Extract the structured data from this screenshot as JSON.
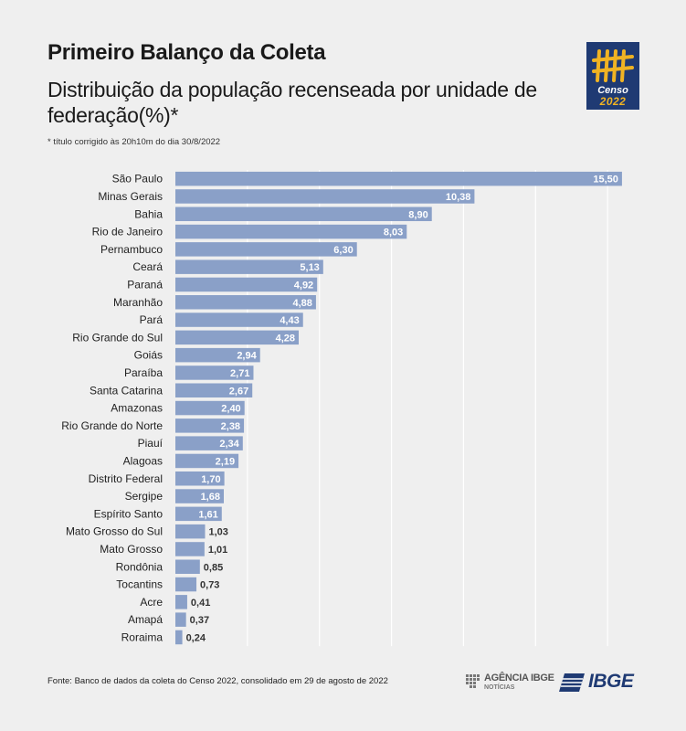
{
  "header": {
    "title": "Primeiro Balanço da Coleta",
    "subtitle": "Distribuição da população recenseada por unidade de federação(%)*",
    "note": "* título corrigido às 20h10m do dia 30/8/2022"
  },
  "logo": {
    "censo_word": "Censo",
    "censo_year": "2022"
  },
  "footer": {
    "source": "Fonte: Banco de dados da coleta do Censo 2022, consolidado em 29 de agosto de 2022",
    "agencia_name": "AGÊNCIA IBGE",
    "agencia_sub": "NOTÍCIAS",
    "ibge_word": "IBGE"
  },
  "colors": {
    "bar": "#8aa0c8",
    "logo_bg": "#1f3a73",
    "logo_accent": "#f0b323",
    "background": "#efefef"
  },
  "chart_data": {
    "type": "bar",
    "orientation": "horizontal",
    "categories": [
      "São Paulo",
      "Minas Gerais",
      "Bahia",
      "Rio de Janeiro",
      "Pernambuco",
      "Ceará",
      "Paraná",
      "Maranhão",
      "Pará",
      "Rio Grande do Sul",
      "Goiás",
      "Paraíba",
      "Santa Catarina",
      "Amazonas",
      "Rio Grande do Norte",
      "Piauí",
      "Alagoas",
      "Distrito Federal",
      "Sergipe",
      "Espírito Santo",
      "Mato Grosso do Sul",
      "Mato Grosso",
      "Rondônia",
      "Tocantins",
      "Acre",
      "Amapá",
      "Roraima"
    ],
    "values": [
      15.5,
      10.38,
      8.9,
      8.03,
      6.3,
      5.13,
      4.92,
      4.88,
      4.43,
      4.28,
      2.94,
      2.71,
      2.67,
      2.4,
      2.38,
      2.34,
      2.19,
      1.7,
      1.68,
      1.61,
      1.03,
      1.01,
      0.85,
      0.73,
      0.41,
      0.37,
      0.24
    ],
    "value_labels": [
      "15,50",
      "10,38",
      "8,90",
      "8,03",
      "6,30",
      "5,13",
      "4,92",
      "4,88",
      "4,43",
      "4,28",
      "2,94",
      "2,71",
      "2,67",
      "2,40",
      "2,38",
      "2,34",
      "2,19",
      "1,70",
      "1,68",
      "1,61",
      "1,03",
      "1,01",
      "0,85",
      "0,73",
      "0,41",
      "0,37",
      "0,24"
    ],
    "xlim": [
      0,
      17.5
    ],
    "gridlines": [
      2.5,
      5,
      7.5,
      10,
      12.5,
      15
    ],
    "grid": true
  }
}
